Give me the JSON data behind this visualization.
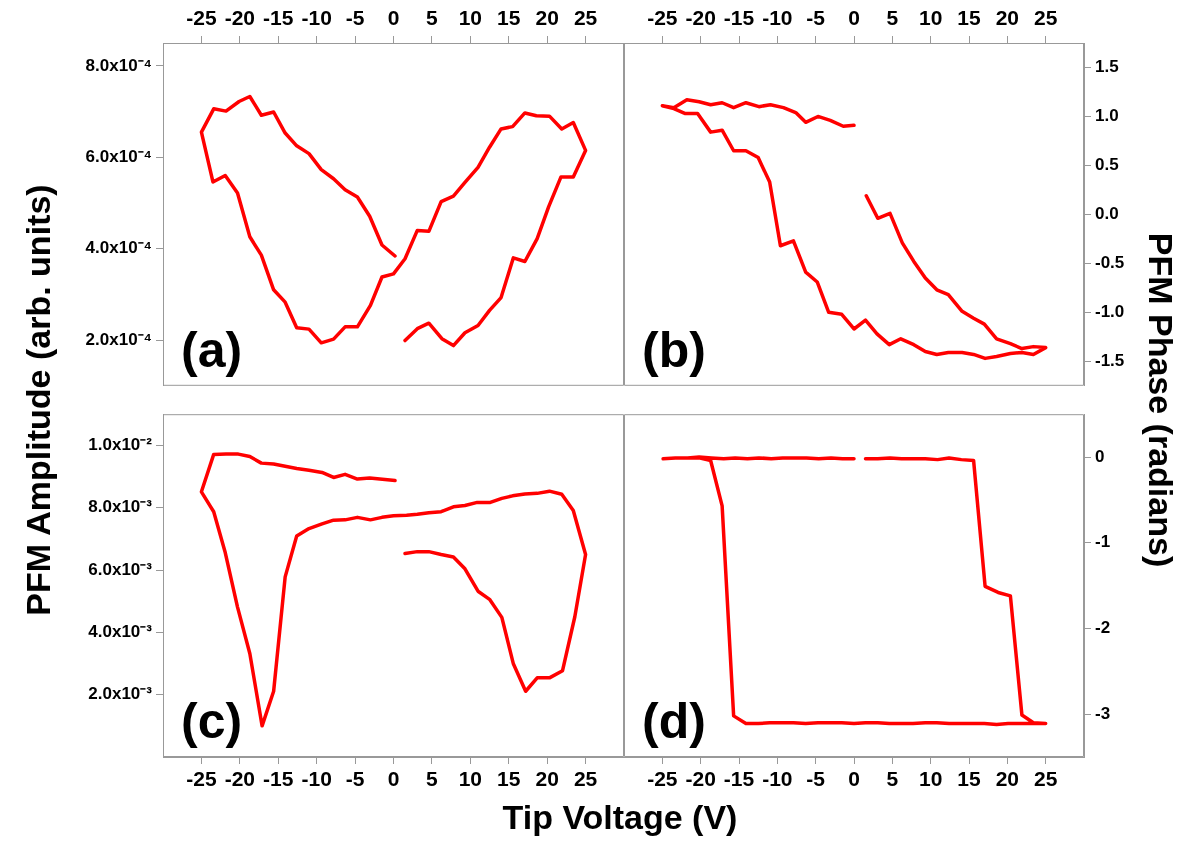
{
  "chart_data": [
    {
      "type": "line",
      "ylabel": "PFM Amplitude (arb. units)",
      "annotations": [
        "(a)"
      ],
      "marker": "none",
      "xlim": [
        -30,
        30
      ],
      "xticks": [
        -25,
        -20,
        -15,
        -10,
        -5,
        0,
        5,
        10,
        15,
        20,
        25
      ],
      "ylim": [
        0.0001,
        0.00085
      ],
      "yticks": [
        {
          "value": 0.0002,
          "label": "2.0x10⁻⁴"
        },
        {
          "value": 0.0004,
          "label": "4.0x10⁻⁴"
        },
        {
          "value": 0.0006,
          "label": "6.0x10⁻⁴"
        },
        {
          "value": 0.0008,
          "label": "8.0x10⁻⁴"
        }
      ],
      "series": [
        {
          "color": "#ff0000",
          "x": [
            0.2,
            -1.5,
            -3.1,
            -4.7,
            -6.3,
            -7.8,
            -9.4,
            -11.0,
            -12.6,
            -14.1,
            -15.6,
            -17.2,
            -18.7,
            -20.1,
            -21.8,
            -23.4,
            -25.0,
            -23.5,
            -21.9,
            -20.3,
            -18.7,
            -17.2,
            -15.6,
            -14.1,
            -12.6,
            -11.0,
            -9.4,
            -7.8,
            -6.3,
            -4.7,
            -3.0,
            -1.5,
            0,
            1.5,
            3.1,
            4.6,
            6.2,
            7.8,
            9.3,
            11.0,
            12.5,
            14.0,
            15.5,
            17.1,
            18.6,
            20.3,
            21.9,
            23.4,
            25.0,
            23.4,
            21.8,
            20.2,
            18.7,
            17.1,
            15.6,
            14.0,
            12.5,
            11.0,
            9.3,
            7.8,
            6.3,
            4.6,
            3.1,
            1.5
          ],
          "values": [
            0.000384,
            0.000408,
            0.000471,
            0.000513,
            0.000529,
            0.000553,
            0.000573,
            0.000608,
            0.000625,
            0.000653,
            0.000699,
            0.000692,
            0.000733,
            0.000722,
            0.000701,
            0.000706,
            0.000655,
            0.000546,
            0.00056,
            0.000522,
            0.000426,
            0.000386,
            0.00031,
            0.000283,
            0.000227,
            0.000224,
            0.000194,
            0.000202,
            0.000229,
            0.000229,
            0.000276,
            0.000338,
            0.000345,
            0.000378,
            0.00044,
            0.000438,
            0.000503,
            0.000515,
            0.000545,
            0.000578,
            0.000622,
            0.000662,
            0.000667,
            0.000697,
            0.000691,
            0.00069,
            0.000662,
            0.000676,
            0.000615,
            0.000557,
            0.000557,
            0.000492,
            0.000422,
            0.000372,
            0.00038,
            0.000293,
            0.000265,
            0.000232,
            0.000216,
            0.000188,
            0.000203,
            0.000237,
            0.000225,
            0.000199
          ]
        }
      ]
    },
    {
      "type": "line",
      "y2label": "PFM Phase (radians)",
      "annotations": [
        "(b)"
      ],
      "marker": "none",
      "xlim": [
        -30,
        30
      ],
      "xticks": [
        -25,
        -20,
        -15,
        -10,
        -5,
        0,
        5,
        10,
        15,
        20,
        25
      ],
      "y2lim": [
        -1.75,
        1.75
      ],
      "y2ticks": [
        -1.5,
        {
          "value": -1,
          "label": "-1.0"
        },
        -0.5,
        {
          "value": 0,
          "label": "0.0"
        },
        0.5,
        {
          "value": 1,
          "label": "1.0"
        },
        1.5
      ],
      "series": [
        {
          "color": "#ff0000",
          "axis": "y2",
          "x": [
            0.0,
            -1.4,
            -3.1,
            -4.7,
            -6.3,
            -7.6,
            -9.2,
            -10.9,
            -12.4,
            -14.1,
            -15.7,
            -17.2,
            -18.7,
            -20.2,
            -21.8,
            -23.5,
            -25.0,
            -23.5,
            -22.0,
            -20.4,
            -18.7,
            -17.2,
            -15.7,
            -14.1,
            -12.5,
            -11.0,
            -9.6,
            -7.9,
            -6.3,
            -4.8,
            -3.3,
            -1.6,
            0.0,
            1.5,
            3.0,
            4.6,
            6.1,
            7.8,
            9.3,
            10.8,
            12.3,
            14.1,
            15.6,
            17.1,
            18.6,
            20.4,
            21.9,
            23.4,
            25.0,
            23.4,
            21.9,
            20.4,
            18.6,
            17.0,
            15.6,
            14.1,
            12.3,
            10.8,
            9.3,
            7.8,
            6.3,
            4.7,
            3.1,
            1.6
          ],
          "values": [
            0.91,
            0.9,
            0.96,
            1.0,
            0.94,
            1.04,
            1.09,
            1.12,
            1.1,
            1.14,
            1.09,
            1.14,
            1.12,
            1.15,
            1.17,
            1.09,
            1.11,
            1.08,
            1.03,
            1.03,
            0.84,
            0.86,
            0.65,
            0.65,
            0.58,
            0.33,
            -0.32,
            -0.27,
            -0.59,
            -0.69,
            -1.0,
            -1.02,
            -1.17,
            -1.08,
            -1.22,
            -1.33,
            -1.27,
            -1.33,
            -1.4,
            -1.43,
            -1.41,
            -1.41,
            -1.43,
            -1.47,
            -1.45,
            -1.42,
            -1.41,
            -1.43,
            -1.36,
            -1.35,
            -1.37,
            -1.32,
            -1.27,
            -1.12,
            -1.06,
            -0.99,
            -0.82,
            -0.77,
            -0.65,
            -0.48,
            -0.29,
            0.01,
            -0.04,
            0.19
          ]
        }
      ]
    },
    {
      "type": "line",
      "xlabel": "Tip Voltage (V)",
      "annotations": [
        "(c)"
      ],
      "marker": "none",
      "xlim": [
        -30,
        30
      ],
      "xticks": [
        -25,
        -20,
        -15,
        -10,
        -5,
        0,
        5,
        10,
        15,
        20,
        25
      ],
      "ylim": [
        0,
        0.011
      ],
      "yticks": [
        {
          "value": 0.002,
          "label": "2.0x10⁻³"
        },
        {
          "value": 0.004,
          "label": "4.0x10⁻³"
        },
        {
          "value": 0.006,
          "label": "6.0x10⁻³"
        },
        {
          "value": 0.008,
          "label": "8.0x10⁻³"
        },
        {
          "value": 0.01,
          "label": "1.0x10⁻²"
        }
      ],
      "series": [
        {
          "color": "#ff0000",
          "x": [
            0.2,
            -3.1,
            -4.7,
            -6.3,
            -7.8,
            -9.3,
            -11.0,
            -12.6,
            -14.1,
            -15.6,
            -17.2,
            -18.7,
            -20.2,
            -21.8,
            -23.4,
            -25.0,
            -23.4,
            -21.9,
            -20.3,
            -18.7,
            -17.1,
            -15.6,
            -14.1,
            -12.6,
            -11.0,
            -9.3,
            -7.8,
            -6.3,
            -4.7,
            -3.0,
            -1.5,
            0,
            1.7,
            3.1,
            4.6,
            6.2,
            7.8,
            9.3,
            10.9,
            12.6,
            14.1,
            15.5,
            17.1,
            18.7,
            20.3,
            21.9,
            23.4,
            25.0,
            23.6,
            22.0,
            20.3,
            18.7,
            17.2,
            15.6,
            14.1,
            12.5,
            11.0,
            9.3,
            7.8,
            6.2,
            4.6,
            3.1,
            1.5
          ],
          "values": [
            0.00887,
            0.00895,
            0.00892,
            0.00907,
            0.00897,
            0.00913,
            0.0092,
            0.00926,
            0.00933,
            0.0094,
            0.00943,
            0.00964,
            0.00972,
            0.00972,
            0.00971,
            0.00851,
            0.00787,
            0.00656,
            0.00481,
            0.00332,
            0.001,
            0.00211,
            0.00578,
            0.00709,
            0.00733,
            0.00748,
            0.0076,
            0.00761,
            0.00769,
            0.00761,
            0.00769,
            0.00774,
            0.00776,
            0.00779,
            0.00784,
            0.00787,
            0.00803,
            0.00807,
            0.00817,
            0.00817,
            0.0083,
            0.00838,
            0.00844,
            0.00846,
            0.00853,
            0.00843,
            0.00791,
            0.0065,
            0.0045,
            0.00277,
            0.00254,
            0.00254,
            0.00211,
            0.00299,
            0.00448,
            0.00506,
            0.00532,
            0.00604,
            0.00642,
            0.0065,
            0.00659,
            0.00659,
            0.00653
          ]
        }
      ]
    },
    {
      "type": "line",
      "annotations": [
        "(d)"
      ],
      "marker": "none",
      "xlim": [
        -30,
        30
      ],
      "xticks": [
        -25,
        -20,
        -15,
        -10,
        -5,
        0,
        5,
        10,
        15,
        20,
        25
      ],
      "y2lim": [
        -3.5,
        0.5
      ],
      "y2ticks": [
        -3,
        -2,
        -1,
        0
      ],
      "series": [
        {
          "color": "#ff0000",
          "axis": "y2",
          "x": [
            0.0,
            -1.5,
            -3.0,
            -4.6,
            -6.2,
            -7.7,
            -9.3,
            -10.8,
            -12.4,
            -13.9,
            -15.5,
            -17.0,
            -18.6,
            -20.2,
            -21.7,
            -23.3,
            -24.9,
            -23.3,
            -21.7,
            -20.2,
            -18.7,
            -17.2,
            -15.7,
            -14.1,
            -12.5,
            -11.0,
            -9.4,
            -7.9,
            -6.3,
            -4.7,
            -3.2,
            -1.6,
            0.0,
            1.5,
            3.1,
            4.6,
            6.2,
            7.7,
            9.3,
            10.8,
            12.4,
            13.9,
            15.5,
            17.0,
            18.6,
            20.1,
            21.7,
            23.3,
            25.0,
            23.4,
            21.9,
            20.4,
            18.8,
            17.1,
            15.6,
            14.0,
            12.4,
            10.9,
            9.3,
            7.8,
            6.2,
            4.7,
            3.1,
            1.5
          ],
          "values": [
            -0.02,
            -0.02,
            -0.01,
            -0.02,
            -0.01,
            -0.01,
            -0.01,
            -0.02,
            -0.01,
            -0.02,
            -0.01,
            -0.02,
            -0.01,
            0.0,
            -0.01,
            -0.01,
            -0.02,
            -0.01,
            -0.01,
            -0.01,
            -0.04,
            -0.57,
            -3.02,
            -3.11,
            -3.11,
            -3.1,
            -3.1,
            -3.1,
            -3.11,
            -3.1,
            -3.1,
            -3.1,
            -3.11,
            -3.1,
            -3.1,
            -3.11,
            -3.11,
            -3.11,
            -3.1,
            -3.1,
            -3.11,
            -3.11,
            -3.11,
            -3.11,
            -3.12,
            -3.11,
            -3.11,
            -3.11,
            -3.11,
            -3.1,
            -3.01,
            -1.62,
            -1.58,
            -1.51,
            -0.04,
            -0.03,
            -0.01,
            -0.03,
            -0.02,
            -0.02,
            -0.02,
            -0.01,
            -0.02,
            -0.02
          ]
        }
      ]
    }
  ]
}
